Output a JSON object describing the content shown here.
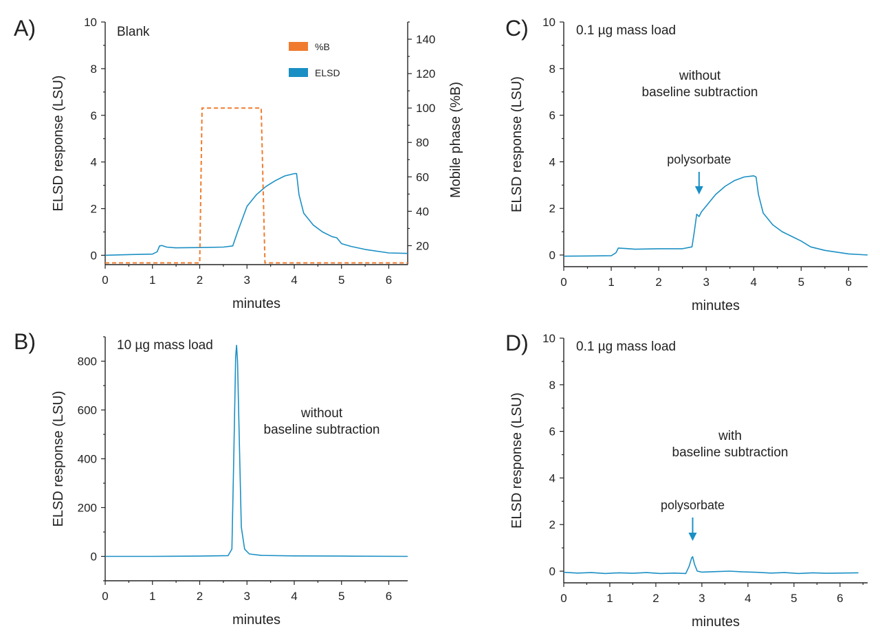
{
  "colors": {
    "elsd": "#1a8fc4",
    "percent_b": "#f07b2e",
    "axis": "#222222"
  },
  "chart_data": [
    {
      "id": "A",
      "type": "line",
      "panel_label": "A)",
      "title": "Blank",
      "xlabel": "minutes",
      "ylabel": "ELSD response (LSU)",
      "y2label": "Mobile phase (%B)",
      "xlim": [
        0,
        6.4
      ],
      "ylim": [
        -0.4,
        10
      ],
      "y2lim": [
        9,
        150
      ],
      "xticks": [
        "0",
        "1",
        "2",
        "3",
        "4",
        "5",
        "6"
      ],
      "yticks": [
        "0",
        "2",
        "4",
        "6",
        "8",
        "10"
      ],
      "y2ticks": [
        "20",
        "40",
        "60",
        "80",
        "100",
        "120",
        "140"
      ],
      "legend": [
        "%B",
        "ELSD"
      ],
      "legend_position": "top-right",
      "series": [
        {
          "name": "ELSD",
          "x": [
            0,
            0.5,
            1.0,
            1.1,
            1.15,
            1.2,
            1.3,
            1.5,
            2.0,
            2.5,
            2.7,
            2.8,
            3.0,
            3.2,
            3.4,
            3.6,
            3.8,
            4.0,
            4.05,
            4.1,
            4.2,
            4.4,
            4.6,
            4.8,
            4.9,
            5.0,
            5.2,
            5.5,
            6.0,
            6.4
          ],
          "y": [
            0.0,
            0.03,
            0.05,
            0.15,
            0.4,
            0.42,
            0.35,
            0.32,
            0.33,
            0.35,
            0.4,
            1.0,
            2.1,
            2.6,
            2.95,
            3.2,
            3.4,
            3.5,
            3.5,
            2.6,
            1.8,
            1.3,
            1.0,
            0.8,
            0.75,
            0.5,
            0.38,
            0.25,
            0.1,
            0.08
          ]
        },
        {
          "name": "%B",
          "x": [
            0,
            2.0,
            2.05,
            3.3,
            3.38,
            6.4
          ],
          "y": [
            10,
            10,
            100,
            100,
            10,
            10
          ]
        }
      ]
    },
    {
      "id": "B",
      "type": "line",
      "panel_label": "B)",
      "title": "10 µg mass load",
      "annotation": [
        "without",
        "baseline subtraction"
      ],
      "xlabel": "minutes",
      "ylabel": "ELSD response (LSU)",
      "xlim": [
        0,
        6.4
      ],
      "ylim": [
        -100,
        900
      ],
      "xticks": [
        "0",
        "1",
        "2",
        "3",
        "4",
        "5",
        "6"
      ],
      "yticks": [
        "0",
        "200",
        "400",
        "600",
        "800"
      ],
      "series": [
        {
          "name": "ELSD",
          "x": [
            0,
            1,
            2,
            2.6,
            2.68,
            2.72,
            2.76,
            2.78,
            2.8,
            2.84,
            2.88,
            2.95,
            3.05,
            3.3,
            4,
            5,
            6.4
          ],
          "y": [
            0,
            0,
            1,
            3,
            30,
            400,
            820,
            865,
            800,
            450,
            120,
            30,
            10,
            4,
            2,
            1,
            0
          ]
        }
      ]
    },
    {
      "id": "C",
      "type": "line",
      "panel_label": "C)",
      "title": "0.1 µg mass load",
      "annotation": [
        "without",
        "baseline subtraction"
      ],
      "arrow_label": "polysorbate",
      "arrow_x": 2.85,
      "arrow_y": 2.6,
      "xlabel": "minutes",
      "ylabel": "ELSD response (LSU)",
      "xlim": [
        0,
        6.4
      ],
      "ylim": [
        -0.5,
        10
      ],
      "xticks": [
        "0",
        "1",
        "2",
        "3",
        "4",
        "5",
        "6"
      ],
      "yticks": [
        "0",
        "2",
        "4",
        "6",
        "8",
        "10"
      ],
      "series": [
        {
          "name": "ELSD",
          "x": [
            0,
            0.5,
            1.0,
            1.1,
            1.15,
            1.3,
            1.5,
            2.0,
            2.5,
            2.7,
            2.75,
            2.8,
            2.85,
            2.9,
            3.0,
            3.2,
            3.4,
            3.6,
            3.8,
            4.0,
            4.05,
            4.1,
            4.2,
            4.4,
            4.6,
            4.8,
            5.0,
            5.2,
            5.5,
            6.0,
            6.4
          ],
          "y": [
            -0.05,
            -0.04,
            -0.03,
            0.1,
            0.3,
            0.28,
            0.25,
            0.27,
            0.27,
            0.35,
            1.0,
            1.75,
            1.65,
            1.85,
            2.1,
            2.6,
            2.95,
            3.2,
            3.35,
            3.4,
            3.35,
            2.6,
            1.8,
            1.3,
            1.0,
            0.8,
            0.6,
            0.35,
            0.2,
            0.05,
            0.0
          ]
        }
      ]
    },
    {
      "id": "D",
      "type": "line",
      "panel_label": "D)",
      "title": "0.1 µg mass load",
      "annotation": [
        "with",
        "baseline subtraction"
      ],
      "arrow_label": "polysorbate",
      "arrow_x": 2.8,
      "arrow_y": 1.3,
      "xlabel": "minutes",
      "ylabel": "ELSD response (LSU)",
      "xlim": [
        0,
        6.6
      ],
      "ylim": [
        -0.5,
        10
      ],
      "xticks": [
        "0",
        "1",
        "2",
        "3",
        "4",
        "5",
        "6"
      ],
      "yticks": [
        "0",
        "2",
        "4",
        "6",
        "8",
        "10"
      ],
      "series": [
        {
          "name": "ELSD",
          "x": [
            0,
            0.3,
            0.6,
            0.9,
            1.2,
            1.5,
            1.8,
            2.1,
            2.4,
            2.65,
            2.72,
            2.78,
            2.8,
            2.84,
            2.9,
            3.0,
            3.3,
            3.6,
            3.9,
            4.2,
            4.5,
            4.8,
            5.1,
            5.4,
            5.7,
            6.0,
            6.4
          ],
          "y": [
            -0.05,
            -0.08,
            -0.06,
            -0.1,
            -0.07,
            -0.09,
            -0.06,
            -0.1,
            -0.08,
            -0.1,
            0.2,
            0.58,
            0.62,
            0.3,
            0.0,
            -0.04,
            -0.02,
            0.0,
            -0.03,
            -0.05,
            -0.08,
            -0.06,
            -0.1,
            -0.07,
            -0.09,
            -0.08,
            -0.07
          ]
        }
      ]
    }
  ]
}
